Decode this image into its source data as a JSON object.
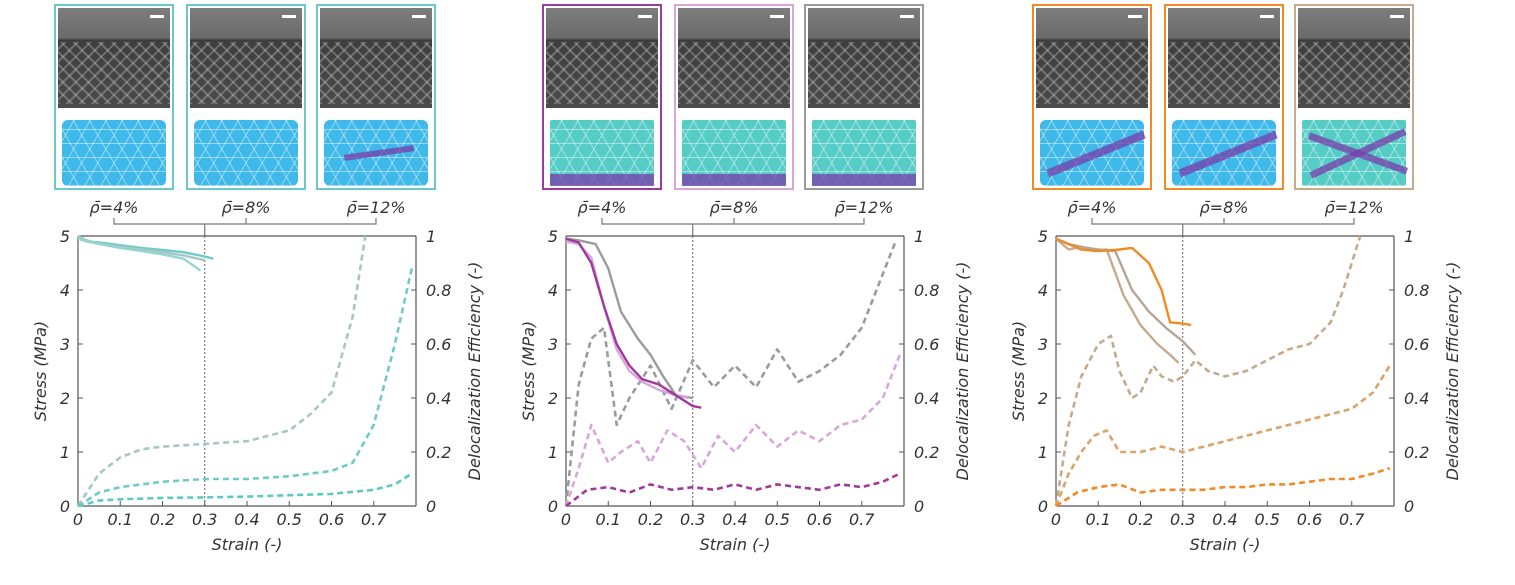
{
  "chart_data": [
    {
      "type": "line",
      "xlabel": "Strain (-)",
      "ylabel_left": "Stress (MPa)",
      "ylabel_right": "Delocalization Efficiency (-)",
      "xlim": [
        0,
        0.8
      ],
      "ylim_left": [
        0,
        5
      ],
      "ylim_right": [
        0,
        1
      ],
      "x_ticks": [
        "0",
        "0.1",
        "0.2",
        "0.3",
        "0.4",
        "0.5",
        "0.6",
        "0.7"
      ],
      "y_ticks_left": [
        "0",
        "1",
        "2",
        "3",
        "4",
        "5"
      ],
      "y_ticks_right": [
        "0",
        "0.2",
        "0.4",
        "0.6",
        "0.8",
        "1"
      ],
      "vline_x": 0.3,
      "densities": [
        "ρ̄=4%",
        "ρ̄=8%",
        "ρ̄=12%"
      ],
      "stress_series": [
        {
          "color": "#6fcbc9",
          "x": [
            0,
            0.02,
            0.05,
            0.1,
            0.15,
            0.2,
            0.25,
            0.3,
            0.32
          ],
          "y": [
            5,
            4.9,
            4.88,
            4.83,
            4.78,
            4.74,
            4.7,
            4.62,
            4.58
          ]
        },
        {
          "color": "#a8c6c3",
          "x": [
            0,
            0.02,
            0.05,
            0.1,
            0.15,
            0.2,
            0.25,
            0.3
          ],
          "y": [
            5,
            4.92,
            4.86,
            4.8,
            4.75,
            4.7,
            4.64,
            4.55
          ]
        },
        {
          "color": "#93d7d2",
          "x": [
            0,
            0.02,
            0.05,
            0.1,
            0.15,
            0.2,
            0.25,
            0.29
          ],
          "y": [
            4.95,
            4.9,
            4.85,
            4.78,
            4.72,
            4.66,
            4.58,
            4.36
          ]
        }
      ],
      "eff_series": [
        {
          "color": "#a8c6c3",
          "x": [
            0,
            0.05,
            0.1,
            0.15,
            0.2,
            0.3,
            0.4,
            0.5,
            0.55,
            0.6,
            0.65,
            0.68
          ],
          "y": [
            0,
            0.12,
            0.18,
            0.21,
            0.22,
            0.23,
            0.24,
            0.28,
            0.34,
            0.42,
            0.7,
            1.0
          ]
        },
        {
          "color": "#6fcbc9",
          "x": [
            0,
            0.05,
            0.1,
            0.2,
            0.3,
            0.4,
            0.5,
            0.6,
            0.65,
            0.7,
            0.75,
            0.79
          ],
          "y": [
            0,
            0.05,
            0.07,
            0.09,
            0.1,
            0.1,
            0.11,
            0.13,
            0.16,
            0.3,
            0.6,
            0.88
          ]
        },
        {
          "color": "#5cc9c4",
          "x": [
            0,
            0.05,
            0.1,
            0.2,
            0.3,
            0.4,
            0.5,
            0.6,
            0.7,
            0.75,
            0.79
          ],
          "y": [
            0,
            0.02,
            0.025,
            0.03,
            0.032,
            0.035,
            0.04,
            0.045,
            0.06,
            0.08,
            0.12
          ]
        }
      ]
    },
    {
      "type": "line",
      "xlabel": "Strain (-)",
      "ylabel_left": "Stress (MPa)",
      "ylabel_right": "Delocalization Efficiency (-)",
      "xlim": [
        0,
        0.8
      ],
      "ylim_left": [
        0,
        5
      ],
      "ylim_right": [
        0,
        1
      ],
      "x_ticks": [
        "0",
        "0.1",
        "0.2",
        "0.3",
        "0.4",
        "0.5",
        "0.6",
        "0.7"
      ],
      "y_ticks_left": [
        "0",
        "1",
        "2",
        "3",
        "4",
        "5"
      ],
      "y_ticks_right": [
        "0",
        "0.2",
        "0.4",
        "0.6",
        "0.8",
        "1"
      ],
      "vline_x": 0.3,
      "densities": [
        "ρ̄=4%",
        "ρ̄=8%",
        "ρ̄=12%"
      ],
      "stress_series": [
        {
          "color": "#9b9b9b",
          "x": [
            0,
            0.03,
            0.07,
            0.1,
            0.13,
            0.17,
            0.2,
            0.23,
            0.26,
            0.3
          ],
          "y": [
            4.95,
            4.92,
            4.85,
            4.4,
            3.6,
            3.1,
            2.8,
            2.4,
            2.05,
            2.0
          ]
        },
        {
          "color": "#d9a6d9",
          "x": [
            0,
            0.03,
            0.06,
            0.09,
            0.12,
            0.15,
            0.18,
            0.22,
            0.26,
            0.29
          ],
          "y": [
            4.9,
            4.85,
            4.6,
            3.7,
            2.9,
            2.5,
            2.3,
            2.15,
            2.05,
            2.0
          ]
        },
        {
          "color": "#a0399d",
          "x": [
            0,
            0.03,
            0.06,
            0.09,
            0.12,
            0.15,
            0.18,
            0.22,
            0.26,
            0.3,
            0.32
          ],
          "y": [
            4.95,
            4.88,
            4.5,
            3.7,
            3.0,
            2.6,
            2.35,
            2.25,
            2.05,
            1.85,
            1.82
          ]
        }
      ],
      "eff_series": [
        {
          "color": "#9b9b9b",
          "x": [
            0,
            0.03,
            0.06,
            0.09,
            0.12,
            0.15,
            0.2,
            0.25,
            0.3,
            0.35,
            0.4,
            0.45,
            0.5,
            0.55,
            0.6,
            0.65,
            0.7,
            0.75,
            0.78
          ],
          "y": [
            0,
            0.45,
            0.62,
            0.66,
            0.3,
            0.4,
            0.52,
            0.36,
            0.54,
            0.44,
            0.52,
            0.44,
            0.58,
            0.46,
            0.5,
            0.56,
            0.66,
            0.86,
            0.98
          ]
        },
        {
          "color": "#d9a6d9",
          "x": [
            0,
            0.03,
            0.06,
            0.1,
            0.13,
            0.17,
            0.2,
            0.24,
            0.28,
            0.32,
            0.36,
            0.4,
            0.45,
            0.5,
            0.55,
            0.6,
            0.65,
            0.7,
            0.75,
            0.79
          ],
          "y": [
            0,
            0.14,
            0.3,
            0.16,
            0.2,
            0.24,
            0.16,
            0.28,
            0.24,
            0.14,
            0.26,
            0.2,
            0.3,
            0.22,
            0.28,
            0.24,
            0.3,
            0.32,
            0.4,
            0.56
          ]
        },
        {
          "color": "#a0399d",
          "x": [
            0,
            0.05,
            0.1,
            0.15,
            0.2,
            0.25,
            0.3,
            0.35,
            0.4,
            0.45,
            0.5,
            0.55,
            0.6,
            0.65,
            0.7,
            0.75,
            0.79
          ],
          "y": [
            0,
            0.06,
            0.07,
            0.05,
            0.08,
            0.06,
            0.07,
            0.06,
            0.08,
            0.06,
            0.08,
            0.07,
            0.06,
            0.08,
            0.07,
            0.09,
            0.12
          ]
        }
      ]
    },
    {
      "type": "line",
      "xlabel": "Strain (-)",
      "ylabel_left": "Stress (MPa)",
      "ylabel_right": "Delocalization Efficiency (-)",
      "xlim": [
        0,
        0.8
      ],
      "ylim_left": [
        0,
        5
      ],
      "ylim_right": [
        0,
        1
      ],
      "x_ticks": [
        "0",
        "0.1",
        "0.2",
        "0.3",
        "0.4",
        "0.5",
        "0.6",
        "0.7"
      ],
      "y_ticks_left": [
        "0",
        "1",
        "2",
        "3",
        "4",
        "5"
      ],
      "y_ticks_right": [
        "0",
        "0.2",
        "0.4",
        "0.6",
        "0.8",
        "1"
      ],
      "vline_x": 0.3,
      "densities": [
        "ρ̄=4%",
        "ρ̄=8%",
        "ρ̄=12%"
      ],
      "stress_series": [
        {
          "color": "#c5ab8e",
          "x": [
            0,
            0.03,
            0.06,
            0.09,
            0.12,
            0.16,
            0.2,
            0.24,
            0.27,
            0.29
          ],
          "y": [
            4.95,
            4.75,
            4.8,
            4.72,
            4.75,
            3.9,
            3.35,
            3.0,
            2.8,
            2.65
          ]
        },
        {
          "color": "#b5a694",
          "x": [
            0,
            0.03,
            0.06,
            0.1,
            0.14,
            0.18,
            0.22,
            0.26,
            0.3,
            0.33
          ],
          "y": [
            4.95,
            4.85,
            4.8,
            4.75,
            4.72,
            4.0,
            3.6,
            3.3,
            3.05,
            2.8
          ]
        },
        {
          "color": "#f08a24",
          "x": [
            0,
            0.03,
            0.06,
            0.1,
            0.14,
            0.18,
            0.22,
            0.25,
            0.27,
            0.3,
            0.32
          ],
          "y": [
            4.95,
            4.85,
            4.75,
            4.72,
            4.74,
            4.78,
            4.5,
            4.0,
            3.4,
            3.38,
            3.35
          ]
        }
      ],
      "eff_series": [
        {
          "color": "#c5ab8e",
          "x": [
            0,
            0.03,
            0.06,
            0.1,
            0.13,
            0.15,
            0.18,
            0.2,
            0.23,
            0.25,
            0.28,
            0.3,
            0.33,
            0.36,
            0.4,
            0.45,
            0.5,
            0.55,
            0.6,
            0.65,
            0.68,
            0.72
          ],
          "y": [
            0,
            0.3,
            0.48,
            0.6,
            0.63,
            0.5,
            0.4,
            0.42,
            0.52,
            0.48,
            0.46,
            0.48,
            0.54,
            0.5,
            0.48,
            0.5,
            0.54,
            0.58,
            0.6,
            0.68,
            0.8,
            1.0
          ]
        },
        {
          "color": "#d9a36a",
          "x": [
            0,
            0.03,
            0.06,
            0.09,
            0.12,
            0.15,
            0.2,
            0.25,
            0.3,
            0.35,
            0.4,
            0.45,
            0.5,
            0.55,
            0.6,
            0.65,
            0.7,
            0.75,
            0.79
          ],
          "y": [
            0,
            0.12,
            0.2,
            0.26,
            0.28,
            0.2,
            0.2,
            0.22,
            0.2,
            0.22,
            0.24,
            0.26,
            0.28,
            0.3,
            0.32,
            0.34,
            0.36,
            0.42,
            0.52
          ]
        },
        {
          "color": "#f08a24",
          "x": [
            0,
            0.05,
            0.1,
            0.15,
            0.2,
            0.25,
            0.3,
            0.35,
            0.4,
            0.45,
            0.5,
            0.55,
            0.6,
            0.65,
            0.7,
            0.75,
            0.79
          ],
          "y": [
            0,
            0.05,
            0.07,
            0.08,
            0.05,
            0.06,
            0.06,
            0.06,
            0.07,
            0.07,
            0.08,
            0.08,
            0.09,
            0.1,
            0.1,
            0.12,
            0.14
          ]
        }
      ]
    }
  ],
  "thumbnails": [
    [
      {
        "border": "#6cc7c6",
        "mesh": "blue",
        "bands": []
      },
      {
        "border": "#6cc7c6",
        "mesh": "blue",
        "bands": []
      },
      {
        "border": "#6cc7c6",
        "mesh": "blue",
        "bands": [
          "mid"
        ]
      }
    ],
    [
      {
        "border": "#a0399d",
        "mesh": "green",
        "bands": [
          "bottom"
        ]
      },
      {
        "border": "#d9a6d9",
        "mesh": "green",
        "bands": [
          "bottom"
        ]
      },
      {
        "border": "#9b9b9b",
        "mesh": "green",
        "bands": [
          "bottom"
        ]
      }
    ],
    [
      {
        "border": "#f08a24",
        "mesh": "blue",
        "bands": [
          "diag"
        ]
      },
      {
        "border": "#f08a24",
        "mesh": "blue",
        "bands": [
          "diag"
        ]
      },
      {
        "border": "#c5ab8e",
        "mesh": "green",
        "bands": [
          "cross"
        ]
      }
    ]
  ]
}
